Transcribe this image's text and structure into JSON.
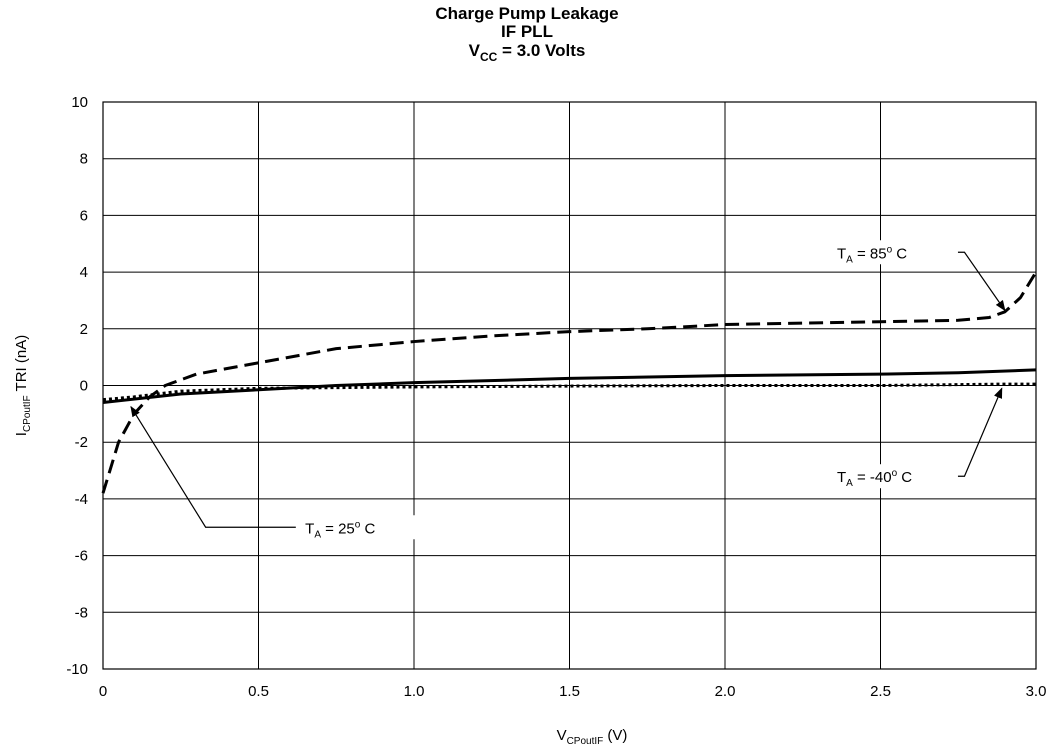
{
  "chart_data": {
    "type": "line",
    "title": {
      "line1": "Charge Pump Leakage",
      "line2": "IF PLL",
      "line3_main": "V",
      "line3_sub": "CC",
      "line3_rest": " = 3.0 Volts"
    },
    "xlabel": {
      "main": "V",
      "sub": "CPoutIF",
      "rest": " (V)"
    },
    "ylabel": {
      "main": "I",
      "sub": "CPoutIF",
      "rest": " TRI (nA)"
    },
    "xlim": [
      0,
      3.0
    ],
    "ylim": [
      -10,
      10
    ],
    "xticks": [
      {
        "v": 0,
        "label": "0"
      },
      {
        "v": 0.5,
        "label": "0.5"
      },
      {
        "v": 1.0,
        "label": "1.0"
      },
      {
        "v": 1.5,
        "label": "1.5"
      },
      {
        "v": 2.0,
        "label": "2.0"
      },
      {
        "v": 2.5,
        "label": "2.5"
      },
      {
        "v": 3.0,
        "label": "3.0"
      }
    ],
    "yticks": [
      {
        "v": 10,
        "label": "10"
      },
      {
        "v": 8,
        "label": "8"
      },
      {
        "v": 6,
        "label": "6"
      },
      {
        "v": 4,
        "label": "4"
      },
      {
        "v": 2,
        "label": "2"
      },
      {
        "v": 0,
        "label": "0"
      },
      {
        "v": -2,
        "label": "-2"
      },
      {
        "v": -4,
        "label": "-4"
      },
      {
        "v": -6,
        "label": "-6"
      },
      {
        "v": -8,
        "label": "-8"
      },
      {
        "v": -10,
        "label": "-10"
      }
    ],
    "grid": true,
    "series": [
      {
        "name": "T_A = 85°C",
        "style": "dashed",
        "x": [
          0,
          0.05,
          0.1,
          0.15,
          0.2,
          0.3,
          0.5,
          0.75,
          1.0,
          1.25,
          1.5,
          1.75,
          2.0,
          2.25,
          2.5,
          2.75,
          2.85,
          2.9,
          2.95,
          3.0
        ],
        "y": [
          -3.8,
          -2.0,
          -1.0,
          -0.4,
          0.0,
          0.4,
          0.8,
          1.3,
          1.55,
          1.75,
          1.9,
          2.0,
          2.15,
          2.2,
          2.25,
          2.3,
          2.4,
          2.6,
          3.1,
          4.0
        ]
      },
      {
        "name": "T_A = 25°C",
        "style": "solid",
        "x": [
          0,
          0.25,
          0.5,
          0.75,
          1.0,
          1.5,
          2.0,
          2.5,
          2.75,
          3.0
        ],
        "y": [
          -0.6,
          -0.3,
          -0.15,
          0.0,
          0.1,
          0.25,
          0.35,
          0.4,
          0.45,
          0.55
        ]
      },
      {
        "name": "T_A = -40°C",
        "style": "dotted",
        "x": [
          0,
          0.1,
          0.25,
          0.5,
          1.0,
          1.5,
          2.0,
          2.5,
          2.9,
          3.0
        ],
        "y": [
          -0.5,
          -0.4,
          -0.2,
          -0.1,
          -0.05,
          -0.02,
          0.0,
          0.0,
          0.05,
          0.05
        ]
      }
    ],
    "annotations": [
      {
        "id": "85",
        "pre": "T",
        "sub": "A",
        "rest": " = 85",
        "sup": "o",
        "post": " C",
        "text_x": 2.36,
        "text_y": 4.7,
        "line_x": [
          2.63,
          2.77,
          2.9
        ],
        "line_y": [
          4.7,
          4.7,
          2.65
        ]
      },
      {
        "id": "m40",
        "pre": "T",
        "sub": "A",
        "rest": " = -40",
        "sup": "o",
        "post": " C",
        "text_x": 2.36,
        "text_y": -3.2,
        "line_x": [
          2.63,
          2.77,
          2.89
        ],
        "line_y": [
          -3.2,
          -3.2,
          -0.1
        ]
      },
      {
        "id": "25",
        "pre": "T",
        "sub": "A",
        "rest": " = 25",
        "sup": "o",
        "post": " C",
        "text_x": 0.65,
        "text_y": -5.0,
        "line_x": [
          0.62,
          0.33,
          0.09
        ],
        "line_y": [
          -5.0,
          -5.0,
          -0.75
        ]
      }
    ]
  }
}
